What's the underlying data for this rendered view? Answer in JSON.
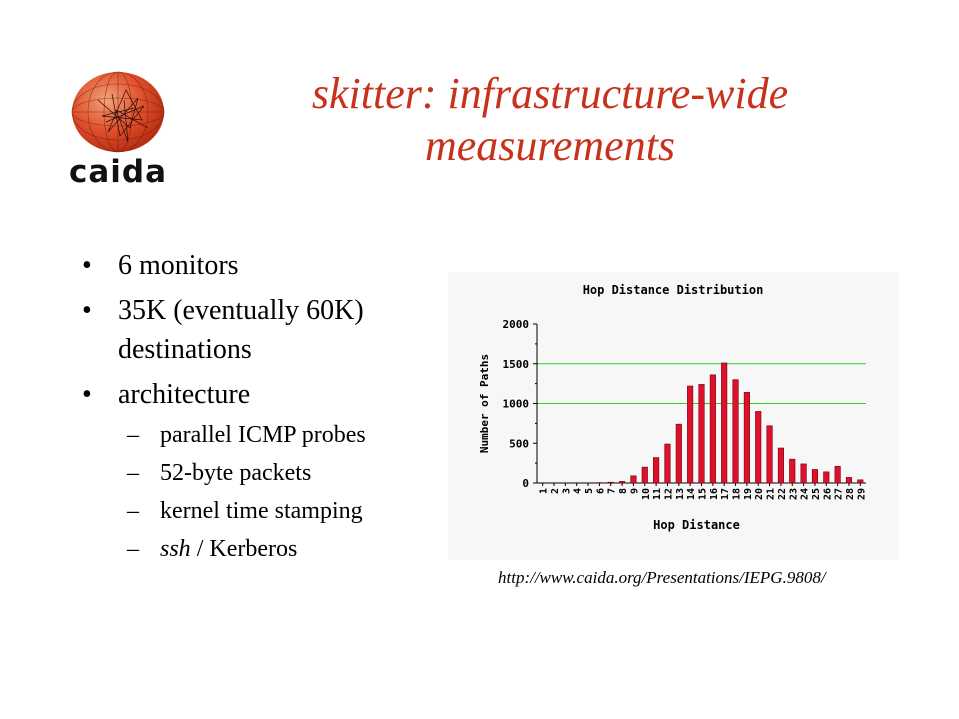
{
  "logo": {
    "text": "caida",
    "icon": "globe-icon"
  },
  "title": {
    "line1": "skitter: infrastructure-wide",
    "line2": "measurements"
  },
  "bullets": [
    {
      "text": "6 monitors"
    },
    {
      "text": "35K (eventually 60K)",
      "text2": "destinations"
    },
    {
      "text": "architecture"
    }
  ],
  "sub_bullets": [
    {
      "text": "parallel ICMP probes"
    },
    {
      "text": "52-byte packets"
    },
    {
      "text": "kernel time stamping"
    },
    {
      "italic": "ssh",
      "rest": " / Kerberos"
    }
  ],
  "bullet_glyph": "•",
  "dash_glyph": "–",
  "url": "http://www.caida.org/Presentations/IEPG.9808/",
  "colors": {
    "title": "#c8321c",
    "bar": "#e0102a",
    "grid": "#33cc33",
    "chart_bg": "#f7f7f7"
  },
  "chart_data": {
    "type": "bar",
    "title": "Hop Distance Distribution",
    "xlabel": "Hop Distance",
    "ylabel": "Number of Paths",
    "ylim": [
      0,
      2000
    ],
    "yticks": [
      0,
      500,
      1000,
      1500,
      2000
    ],
    "grid_lines_at": [
      1000,
      1500
    ],
    "categories": [
      "1",
      "2",
      "3",
      "4",
      "5",
      "6",
      "7",
      "8",
      "9",
      "10",
      "11",
      "12",
      "13",
      "14",
      "15",
      "16",
      "17",
      "18",
      "19",
      "20",
      "21",
      "22",
      "23",
      "24",
      "25",
      "26",
      "27",
      "28",
      "29"
    ],
    "values": [
      0,
      0,
      0,
      0,
      0,
      5,
      10,
      20,
      90,
      200,
      320,
      490,
      740,
      1220,
      1240,
      1360,
      1510,
      1300,
      1140,
      900,
      720,
      440,
      300,
      240,
      170,
      140,
      210,
      70,
      40
    ]
  }
}
